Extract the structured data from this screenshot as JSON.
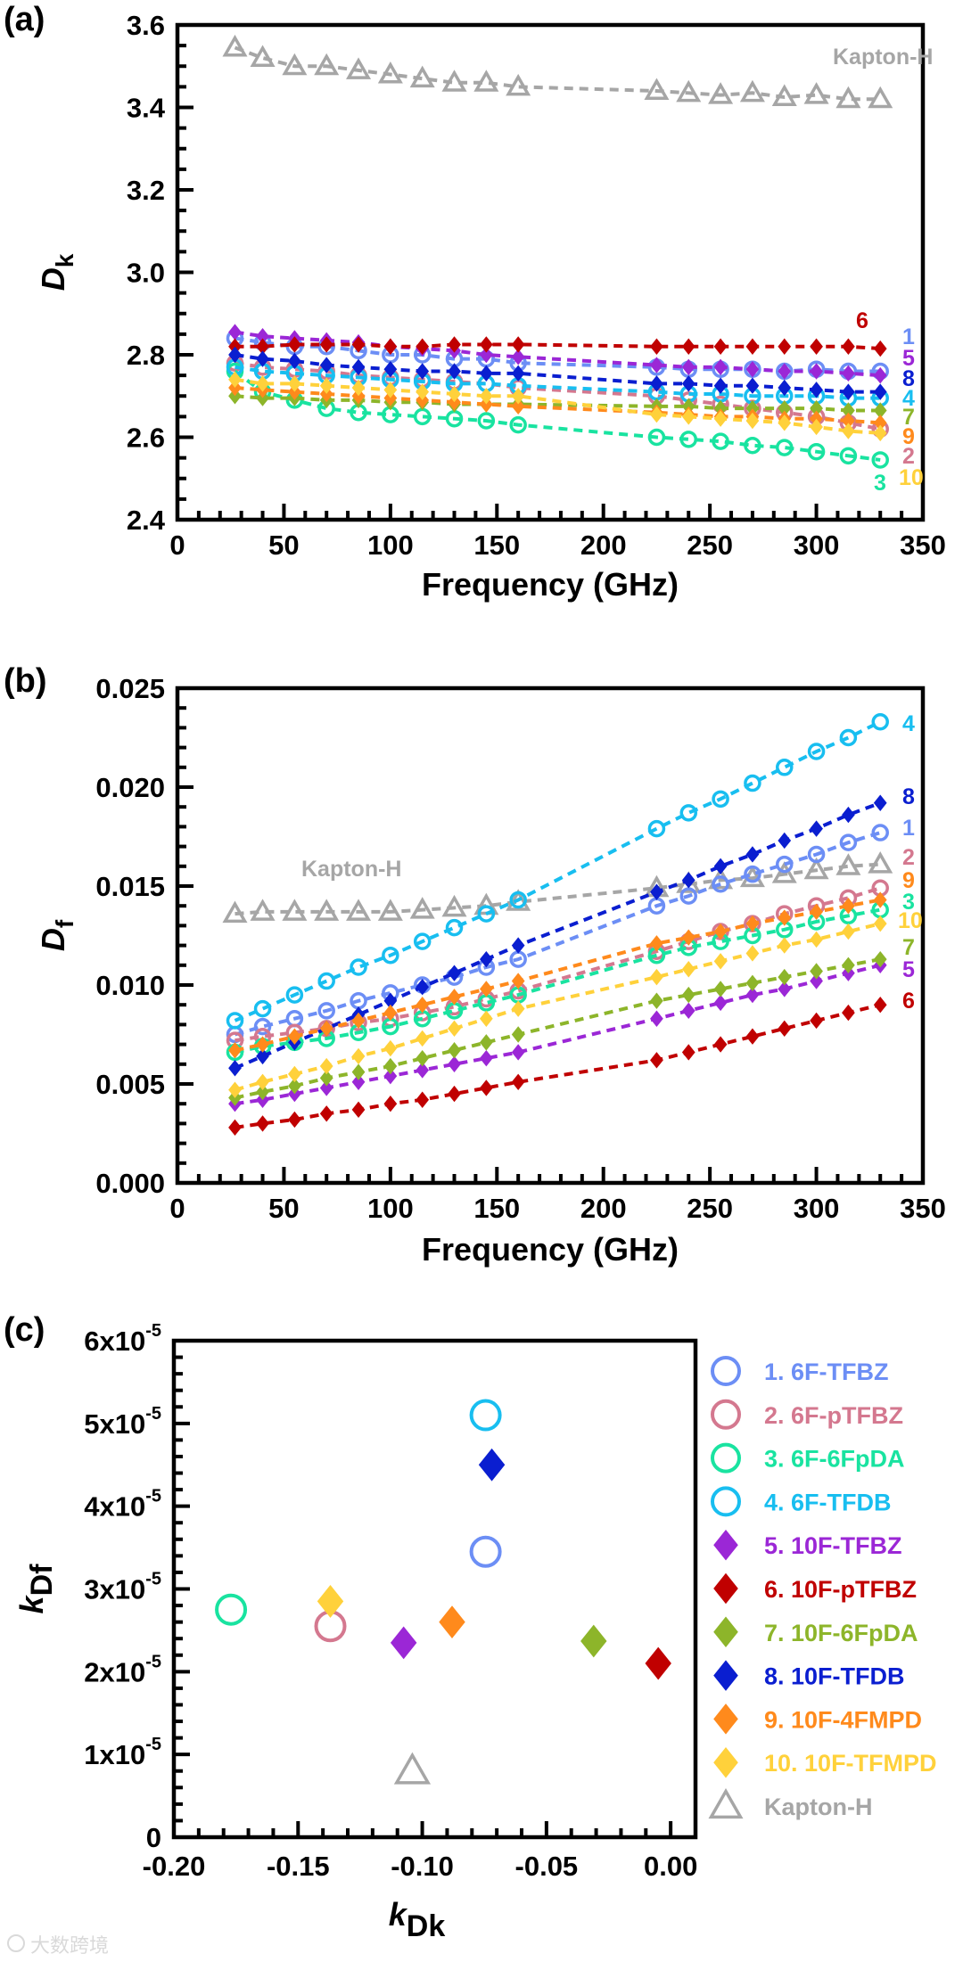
{
  "chart_data": [
    {
      "type": "line",
      "panel_label": "(a)",
      "xlabel": "Frequency (GHz)",
      "ylabel": {
        "main": "D",
        "sub": "k",
        "color": "#d00000"
      },
      "xlim": [
        0,
        350
      ],
      "ylim": [
        2.4,
        3.6
      ],
      "xtick_labels": [
        "0",
        "50",
        "100",
        "150",
        "200",
        "250",
        "300",
        "350"
      ],
      "ytick_labels": [
        "2.4",
        "2.6",
        "2.8",
        "3.0",
        "3.2",
        "3.4",
        "3.6"
      ],
      "x": [
        27,
        40,
        55,
        70,
        85,
        100,
        115,
        130,
        145,
        160,
        225,
        240,
        255,
        270,
        285,
        300,
        315,
        330
      ],
      "series": [
        {
          "label": "Kapton-H",
          "color": "#a6a6a6",
          "marker": "open-triangle",
          "values": [
            3.545,
            3.52,
            3.5,
            3.5,
            3.49,
            3.48,
            3.47,
            3.46,
            3.46,
            3.45,
            3.44,
            3.435,
            3.43,
            3.435,
            3.425,
            3.43,
            3.42,
            3.42
          ]
        },
        {
          "label": "1",
          "color": "#6c8ef5",
          "marker": "open-circle",
          "values": [
            2.84,
            2.83,
            2.82,
            2.82,
            2.81,
            2.8,
            2.8,
            2.79,
            2.79,
            2.78,
            2.77,
            2.765,
            2.765,
            2.765,
            2.76,
            2.765,
            2.76,
            2.76
          ]
        },
        {
          "label": "2",
          "color": "#d4788f",
          "marker": "open-circle",
          "values": [
            2.78,
            2.77,
            2.765,
            2.76,
            2.75,
            2.745,
            2.74,
            2.735,
            2.73,
            2.72,
            2.7,
            2.69,
            2.68,
            2.67,
            2.66,
            2.65,
            2.635,
            2.62
          ]
        },
        {
          "label": "3",
          "color": "#19e3a0",
          "marker": "open-circle",
          "values": [
            2.76,
            2.71,
            2.69,
            2.67,
            2.66,
            2.655,
            2.65,
            2.645,
            2.64,
            2.63,
            2.6,
            2.595,
            2.59,
            2.58,
            2.575,
            2.565,
            2.555,
            2.545
          ]
        },
        {
          "label": "4",
          "color": "#18bef0",
          "marker": "open-circle",
          "values": [
            2.77,
            2.76,
            2.755,
            2.75,
            2.745,
            2.74,
            2.735,
            2.73,
            2.73,
            2.725,
            2.71,
            2.705,
            2.705,
            2.7,
            2.7,
            2.7,
            2.695,
            2.695
          ]
        },
        {
          "label": "5",
          "color": "#9b27d6",
          "marker": "diamond",
          "values": [
            2.855,
            2.845,
            2.84,
            2.835,
            2.83,
            2.82,
            2.815,
            2.81,
            2.8,
            2.795,
            2.775,
            2.77,
            2.77,
            2.765,
            2.76,
            2.76,
            2.755,
            2.75
          ]
        },
        {
          "label": "6",
          "color": "#c00000",
          "marker": "diamond",
          "values": [
            2.82,
            2.82,
            2.825,
            2.825,
            2.825,
            2.82,
            2.82,
            2.825,
            2.825,
            2.825,
            2.82,
            2.82,
            2.82,
            2.82,
            2.82,
            2.82,
            2.82,
            2.815
          ]
        },
        {
          "label": "7",
          "color": "#8db52a",
          "marker": "diamond",
          "values": [
            2.7,
            2.695,
            2.695,
            2.69,
            2.69,
            2.685,
            2.685,
            2.68,
            2.68,
            2.68,
            2.675,
            2.675,
            2.67,
            2.67,
            2.67,
            2.67,
            2.665,
            2.665
          ]
        },
        {
          "label": "8",
          "color": "#0a1ed0",
          "marker": "diamond",
          "values": [
            2.8,
            2.79,
            2.785,
            2.775,
            2.77,
            2.765,
            2.76,
            2.76,
            2.755,
            2.755,
            2.73,
            2.73,
            2.725,
            2.725,
            2.72,
            2.715,
            2.71,
            2.71
          ]
        },
        {
          "label": "9",
          "color": "#ff8a1c",
          "marker": "diamond",
          "values": [
            2.72,
            2.715,
            2.71,
            2.705,
            2.7,
            2.695,
            2.69,
            2.685,
            2.68,
            2.675,
            2.66,
            2.655,
            2.65,
            2.65,
            2.645,
            2.645,
            2.64,
            2.635
          ]
        },
        {
          "label": "10",
          "color": "#ffd13b",
          "marker": "diamond",
          "values": [
            2.74,
            2.73,
            2.73,
            2.725,
            2.72,
            2.715,
            2.71,
            2.705,
            2.7,
            2.7,
            2.655,
            2.65,
            2.645,
            2.64,
            2.635,
            2.625,
            2.615,
            2.61
          ]
        }
      ]
    },
    {
      "type": "line",
      "panel_label": "(b)",
      "xlabel": "Frequency (GHz)",
      "ylabel": {
        "main": "D",
        "sub": "f",
        "color": "#0a1ed0"
      },
      "xlim": [
        0,
        350
      ],
      "ylim": [
        0,
        0.025
      ],
      "xtick_labels": [
        "0",
        "50",
        "100",
        "150",
        "200",
        "250",
        "300",
        "350"
      ],
      "ytick_labels": [
        "0.000",
        "0.005",
        "0.010",
        "0.015",
        "0.020",
        "0.025"
      ],
      "x": [
        27,
        40,
        55,
        70,
        85,
        100,
        115,
        130,
        145,
        160,
        225,
        240,
        255,
        270,
        285,
        300,
        315,
        330
      ],
      "series": [
        {
          "label": "Kapton-H",
          "color": "#a6a6a6",
          "marker": "open-triangle",
          "values": [
            0.0136,
            0.0137,
            0.0137,
            0.0137,
            0.0137,
            0.0137,
            0.0138,
            0.0139,
            0.014,
            0.0142,
            0.0149,
            0.0151,
            0.0153,
            0.0154,
            0.0156,
            0.0158,
            0.016,
            0.0161
          ]
        },
        {
          "label": "1",
          "color": "#6c8ef5",
          "marker": "open-circle",
          "values": [
            0.0075,
            0.0079,
            0.0083,
            0.0087,
            0.0092,
            0.0096,
            0.01,
            0.0104,
            0.0109,
            0.0113,
            0.014,
            0.0145,
            0.0151,
            0.0156,
            0.0161,
            0.0166,
            0.0172,
            0.0177
          ]
        },
        {
          "label": "2",
          "color": "#d4788f",
          "marker": "open-circle",
          "values": [
            0.0072,
            0.0074,
            0.0076,
            0.0078,
            0.0081,
            0.0083,
            0.0086,
            0.0089,
            0.0093,
            0.0097,
            0.0117,
            0.0122,
            0.0127,
            0.0131,
            0.0136,
            0.014,
            0.0144,
            0.0149
          ]
        },
        {
          "label": "3",
          "color": "#19e3a0",
          "marker": "open-circle",
          "values": [
            0.0066,
            0.0069,
            0.0071,
            0.0073,
            0.0076,
            0.0079,
            0.0083,
            0.0087,
            0.0091,
            0.0095,
            0.0115,
            0.0119,
            0.0122,
            0.0125,
            0.0128,
            0.0132,
            0.0135,
            0.0138
          ]
        },
        {
          "label": "4",
          "color": "#18bef0",
          "marker": "open-circle",
          "values": [
            0.0082,
            0.0088,
            0.0095,
            0.0102,
            0.0109,
            0.0115,
            0.0122,
            0.0129,
            0.0136,
            0.0143,
            0.0179,
            0.0187,
            0.0194,
            0.0202,
            0.021,
            0.0218,
            0.0225,
            0.0233
          ]
        },
        {
          "label": "5",
          "color": "#9b27d6",
          "marker": "diamond",
          "values": [
            0.004,
            0.0042,
            0.0045,
            0.0048,
            0.0051,
            0.0054,
            0.0057,
            0.006,
            0.0063,
            0.0066,
            0.0083,
            0.0087,
            0.0091,
            0.0095,
            0.0098,
            0.0102,
            0.0106,
            0.011
          ]
        },
        {
          "label": "6",
          "color": "#c00000",
          "marker": "diamond",
          "values": [
            0.0028,
            0.003,
            0.0032,
            0.0035,
            0.0037,
            0.004,
            0.0042,
            0.0045,
            0.0048,
            0.0051,
            0.0062,
            0.0066,
            0.007,
            0.0074,
            0.0078,
            0.0082,
            0.0086,
            0.009
          ]
        },
        {
          "label": "7",
          "color": "#8db52a",
          "marker": "diamond",
          "values": [
            0.0043,
            0.0046,
            0.0049,
            0.0053,
            0.0056,
            0.0059,
            0.0063,
            0.0067,
            0.0071,
            0.0075,
            0.0092,
            0.0095,
            0.0098,
            0.0101,
            0.0104,
            0.0107,
            0.011,
            0.0113
          ]
        },
        {
          "label": "8",
          "color": "#0a1ed0",
          "marker": "diamond",
          "values": [
            0.0058,
            0.0064,
            0.0071,
            0.0078,
            0.0085,
            0.0092,
            0.0099,
            0.0106,
            0.0113,
            0.012,
            0.0147,
            0.0153,
            0.016,
            0.0166,
            0.0173,
            0.0179,
            0.0186,
            0.0192
          ]
        },
        {
          "label": "9",
          "color": "#ff8a1c",
          "marker": "diamond",
          "values": [
            0.0067,
            0.007,
            0.0074,
            0.0078,
            0.0082,
            0.0086,
            0.009,
            0.0094,
            0.0098,
            0.0102,
            0.0121,
            0.0124,
            0.0127,
            0.0131,
            0.0134,
            0.0137,
            0.014,
            0.0143
          ]
        },
        {
          "label": "10",
          "color": "#ffd13b",
          "marker": "diamond",
          "values": [
            0.0047,
            0.0051,
            0.0055,
            0.0059,
            0.0064,
            0.0068,
            0.0073,
            0.0078,
            0.0083,
            0.0088,
            0.0104,
            0.0108,
            0.0112,
            0.0116,
            0.012,
            0.0123,
            0.0127,
            0.0131
          ]
        }
      ]
    },
    {
      "type": "scatter",
      "panel_label": "(c)",
      "xlabel": {
        "main": "k",
        "sub": "Dk",
        "color": "#d00000"
      },
      "ylabel": {
        "main": "k",
        "sub": "Df",
        "color": "#0a1ed0"
      },
      "xlim": [
        -0.2,
        0.01
      ],
      "ylim": [
        0,
        6e-05
      ],
      "xtick_labels": [
        "-0.20",
        "-0.15",
        "-0.10",
        "-0.05",
        "0.00"
      ],
      "ytick_labels": [
        {
          "base": "0",
          "exp": ""
        },
        {
          "base": "1x10",
          "exp": "-5"
        },
        {
          "base": "2x10",
          "exp": "-5"
        },
        {
          "base": "3x10",
          "exp": "-5"
        },
        {
          "base": "4x10",
          "exp": "-5"
        },
        {
          "base": "5x10",
          "exp": "-5"
        },
        {
          "base": "6x10",
          "exp": "-5"
        }
      ],
      "legend_position": "right",
      "points": [
        {
          "legend": "1. 6F-TFBZ",
          "color": "#6c8ef5",
          "marker": "open-circle",
          "x": -0.0745,
          "y": 3.45e-05
        },
        {
          "legend": "2. 6F-pTFBZ",
          "color": "#d4788f",
          "marker": "open-circle",
          "x": -0.137,
          "y": 2.55e-05
        },
        {
          "legend": "3. 6F-6FpDA",
          "color": "#19e3a0",
          "marker": "open-circle",
          "x": -0.177,
          "y": 2.75e-05
        },
        {
          "legend": "4. 6F-TFDB",
          "color": "#18bef0",
          "marker": "open-circle",
          "x": -0.0745,
          "y": 5.1e-05
        },
        {
          "legend": "5. 10F-TFBZ",
          "color": "#9b27d6",
          "marker": "diamond",
          "x": -0.1075,
          "y": 2.35e-05
        },
        {
          "legend": "6. 10F-pTFBZ",
          "color": "#c00000",
          "marker": "diamond",
          "x": -0.005,
          "y": 2.1e-05
        },
        {
          "legend": "7. 10F-6FpDA",
          "color": "#8db52a",
          "marker": "diamond",
          "x": -0.031,
          "y": 2.37e-05
        },
        {
          "legend": "8. 10F-TFDB",
          "color": "#0a1ed0",
          "marker": "diamond",
          "x": -0.072,
          "y": 4.5e-05
        },
        {
          "legend": "9. 10F-4FMPD",
          "color": "#ff8a1c",
          "marker": "diamond",
          "x": -0.088,
          "y": 2.6e-05
        },
        {
          "legend": "10. 10F-TFMPD",
          "color": "#ffd13b",
          "marker": "diamond",
          "x": -0.137,
          "y": 2.85e-05
        },
        {
          "legend": "Kapton-H",
          "color": "#a6a6a6",
          "marker": "open-triangle",
          "x": -0.104,
          "y": 8e-06
        }
      ]
    }
  ],
  "watermark": "大数跨境"
}
